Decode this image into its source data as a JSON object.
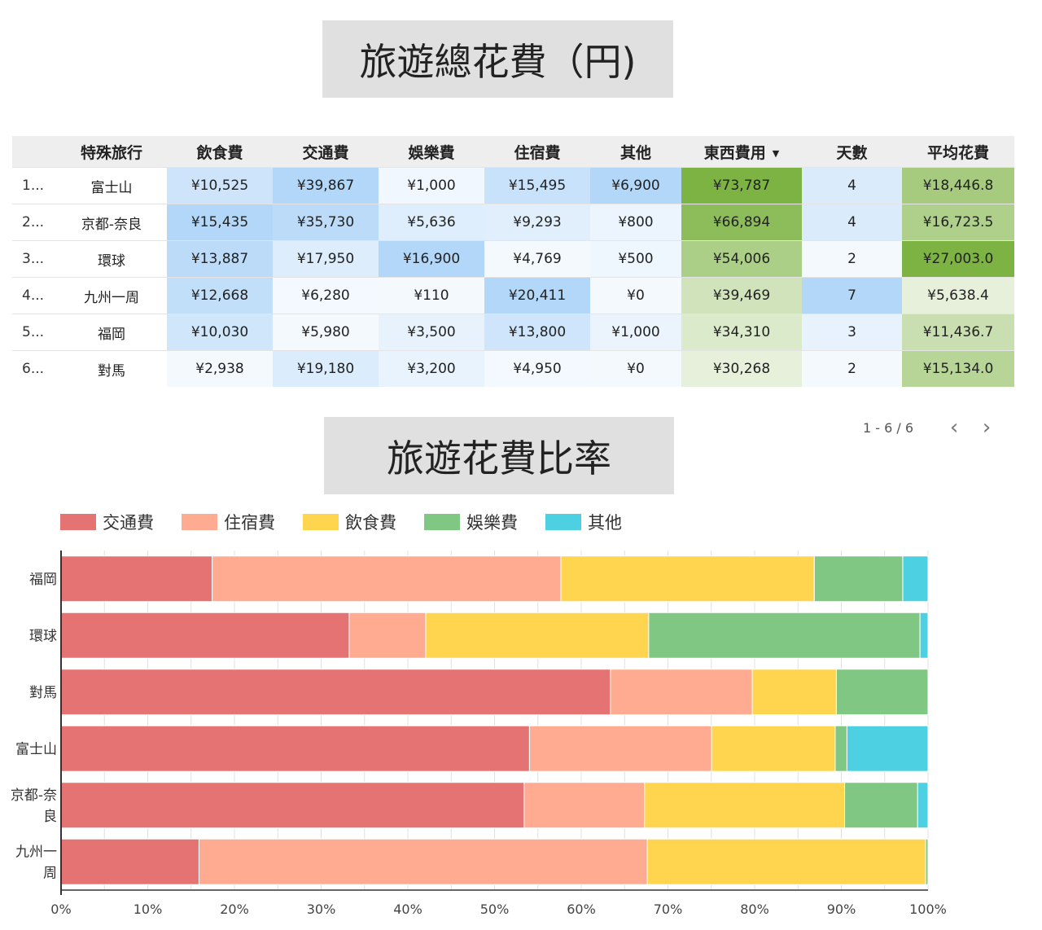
{
  "titles": {
    "total": "旅遊總花費（円)",
    "ratio": "旅遊花費比率"
  },
  "table": {
    "headers": [
      "",
      "特殊旅行",
      "飲食費",
      "交通費",
      "娛樂費",
      "住宿費",
      "其他",
      "東西費用",
      "天數",
      "平均花費"
    ],
    "sort_indicator": "▼",
    "rows": [
      [
        "1...",
        "富士山",
        "¥10,525",
        "¥39,867",
        "¥1,000",
        "¥15,495",
        "¥6,900",
        "¥73,787",
        "4",
        "¥18,446.8"
      ],
      [
        "2...",
        "京都-奈良",
        "¥15,435",
        "¥35,730",
        "¥5,636",
        "¥9,293",
        "¥800",
        "¥66,894",
        "4",
        "¥16,723.5"
      ],
      [
        "3...",
        "環球",
        "¥13,887",
        "¥17,950",
        "¥16,900",
        "¥4,769",
        "¥500",
        "¥54,006",
        "2",
        "¥27,003.0"
      ],
      [
        "4...",
        "九州一周",
        "¥12,668",
        "¥6,280",
        "¥110",
        "¥20,411",
        "¥0",
        "¥39,469",
        "7",
        "¥5,638.4"
      ],
      [
        "5...",
        "福岡",
        "¥10,030",
        "¥5,980",
        "¥3,500",
        "¥13,800",
        "¥1,000",
        "¥34,310",
        "3",
        "¥11,436.7"
      ],
      [
        "6...",
        "對馬",
        "¥2,938",
        "¥19,180",
        "¥3,200",
        "¥4,950",
        "¥0",
        "¥30,268",
        "2",
        "¥15,134.0"
      ]
    ]
  },
  "pager": {
    "range": "1 - 6 / 6",
    "prev": "‹",
    "next": "›"
  },
  "chart_data": {
    "type": "bar",
    "orientation": "horizontal",
    "stacked": "percent",
    "categories": [
      "福岡",
      "環球",
      "對馬",
      "富士山",
      "京都-奈良",
      "九州一周"
    ],
    "series": [
      {
        "name": "交通費",
        "color": "#e57373",
        "values": [
          5980,
          17950,
          19180,
          39867,
          35730,
          6280
        ]
      },
      {
        "name": "住宿費",
        "color": "#ffab91",
        "values": [
          13800,
          4769,
          4950,
          15495,
          9293,
          20411
        ]
      },
      {
        "name": "飲食費",
        "color": "#ffd54f",
        "values": [
          10030,
          13887,
          2938,
          10525,
          15435,
          12668
        ]
      },
      {
        "name": "娛樂費",
        "color": "#81c784",
        "values": [
          3500,
          16900,
          3200,
          1000,
          5636,
          110
        ]
      },
      {
        "name": "其他",
        "color": "#4dd0e1",
        "values": [
          1000,
          500,
          0,
          6900,
          800,
          0
        ]
      }
    ],
    "x_ticks": [
      "0%",
      "10%",
      "20%",
      "30%",
      "40%",
      "50%",
      "60%",
      "70%",
      "80%",
      "90%",
      "100%"
    ],
    "xlim": [
      0,
      100
    ],
    "legend": "top-left",
    "grid": true
  }
}
